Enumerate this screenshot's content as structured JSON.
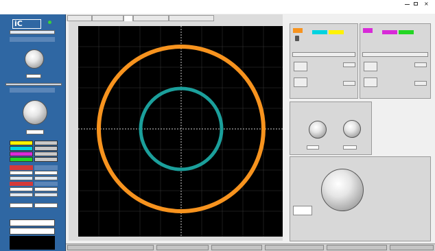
{
  "app": {
    "title": "",
    "menu": [
      "",
      "",
      "",
      "",
      ""
    ]
  },
  "tabs": [
    {
      "label": ""
    },
    {
      "label": ""
    },
    {
      "label": ""
    },
    {
      "label": ""
    },
    {
      "label": ""
    }
  ],
  "sidebar": {
    "brand": "iC",
    "subtitle": "",
    "panel1": "",
    "panel2": "",
    "quit": ""
  },
  "plot": {
    "xlabel": "",
    "ylabel": ""
  },
  "status": [
    "",
    "",
    "",
    "",
    "",
    ""
  ],
  "colors": {
    "trace_outer": "#f7931e",
    "trace_inner": "#1b9f9b",
    "sidebar_bg": "#2f67a3",
    "quit_bg": "#000000"
  },
  "icons": [
    "minimize-icon",
    "maximize-icon",
    "close-icon",
    "speaker-icon",
    "status-led-icon"
  ]
}
